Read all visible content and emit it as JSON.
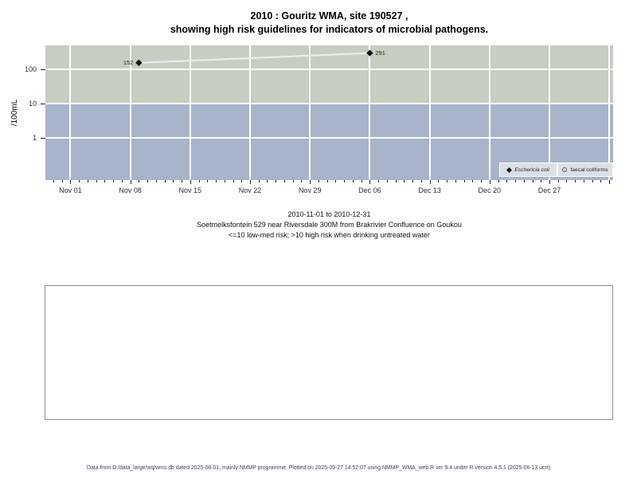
{
  "title": {
    "line1": "2010 : Gouritz WMA, site 190527 ,",
    "line2": "showing high risk guidelines for indicators of microbial pathogens."
  },
  "subtitle": {
    "line1": "2010-11-01 to 2010-12-31",
    "line2": "Soetmelksfontein 529 near Riversdale 300M from Brakrivier Confluence on Goukou",
    "line3": "<=10 low-med risk; >10 high risk when drinking untreated water"
  },
  "footer": {
    "text": "Data from D:/data_large/wq/wms.db dated 2025-08-01, mainly NMMP programme. Plotted on 2025-09-27 14:52:07 using NMMP_WMA_web.R ver 9.4 under R version 4.5.1 (2025-06-13 ucrt)"
  },
  "chart_data": {
    "type": "scatter",
    "title": "2010 : Gouritz WMA, site 190527 , showing high risk guidelines for indicators of microbial pathogens.",
    "ylabel": "/100mL",
    "y_scale": "log10",
    "y_ticks": [
      100,
      10,
      1
    ],
    "x_start_date": "2010-11-01",
    "x_tick_labels": [
      "Nov 01",
      "Nov 08",
      "Nov 15",
      "Nov 22",
      "Nov 29",
      "Dec 06",
      "Dec 13",
      "Dec 20",
      "Dec 27"
    ],
    "x_minor_ticks": "daily",
    "grid": true,
    "legend_position": "bottom-right",
    "series": [
      {
        "name": "Eschericia coli",
        "marker": "diamond-filled",
        "points": [
          {
            "date": "2010-11-09",
            "value": 152,
            "label": "152",
            "label_side": "left"
          },
          {
            "date": "2010-12-06",
            "value": 291,
            "label": "291",
            "label_side": "right"
          }
        ]
      },
      {
        "name": "faecal coliforms",
        "marker": "circle-open",
        "points": []
      }
    ],
    "risk_bands": [
      {
        "range": ">10",
        "meaning": "high risk",
        "color": "#c6cdc1"
      },
      {
        "range": "<=10",
        "meaning": "low-med risk",
        "color": "#a7b4cb"
      }
    ]
  },
  "colors": {
    "band_high": "#c6cdc1",
    "band_low": "#a7b4cb",
    "gridline": "#ffffff",
    "marker": "#141414",
    "connect_line": "#ececec",
    "legend_bg": "#dcdfe5",
    "footer_text": "#3d3d5c",
    "box_border": "#8c8c8c"
  }
}
